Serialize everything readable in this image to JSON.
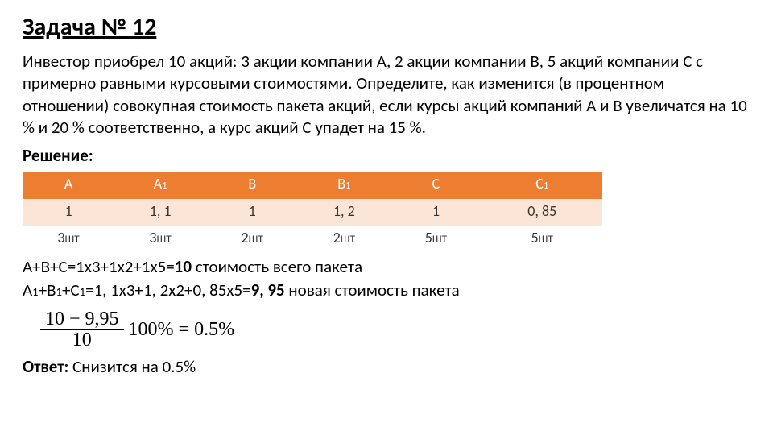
{
  "title": "Задача № 12",
  "problem": "Инвестор приобрел 10 акций: 3 акции компании А, 2 акции компании В, 5 акций компании С с примерно равными курсовыми стоимостями. Определите, как изменится (в процентном отношении) совокупная стоимость пакета акций, если курсы акций компаний А и В увеличатся на 10 % и 20 % соответственно, а курс акций С упадет на 15 %.",
  "solution_label": "Решение:",
  "table": {
    "headers": [
      "А",
      "А",
      "В",
      "В",
      "С",
      "С"
    ],
    "header_sub": [
      "",
      "1",
      "",
      "1",
      "",
      "1"
    ],
    "row1": [
      "1",
      "1, 1",
      "1",
      "1, 2",
      "1",
      "0, 85"
    ],
    "row2_num": [
      "3",
      "3",
      "2",
      "2",
      "5",
      "5"
    ],
    "row2_unit": [
      "ШТ",
      "ШТ",
      "ШТ",
      "ШТ",
      "ШТ",
      "ШТ"
    ],
    "header_bg": "#ed7d31",
    "header_fg": "#ffffff",
    "row1_bg": "#fbe5d6",
    "row2_bg": "#ffffff"
  },
  "calc1_prefix": "А+В+С=1х3+1х2+1х5=",
  "calc1_bold": "10",
  "calc1_suffix": " стоимость всего пакета",
  "calc2_a": "А",
  "calc2_b": "+В",
  "calc2_c": "+С",
  "calc2_mid": "=1, 1х3+1, 2х2+0, 85х5=",
  "calc2_bold": "9, 95",
  "calc2_suffix": " новая стоимость пакета",
  "sub1": "1",
  "formula": {
    "numerator": "10 − 9,95",
    "denominator": "10",
    "tail": "100% = 0.5%"
  },
  "answer_label": "Ответ:",
  "answer_text": " Снизится на 0.5%"
}
